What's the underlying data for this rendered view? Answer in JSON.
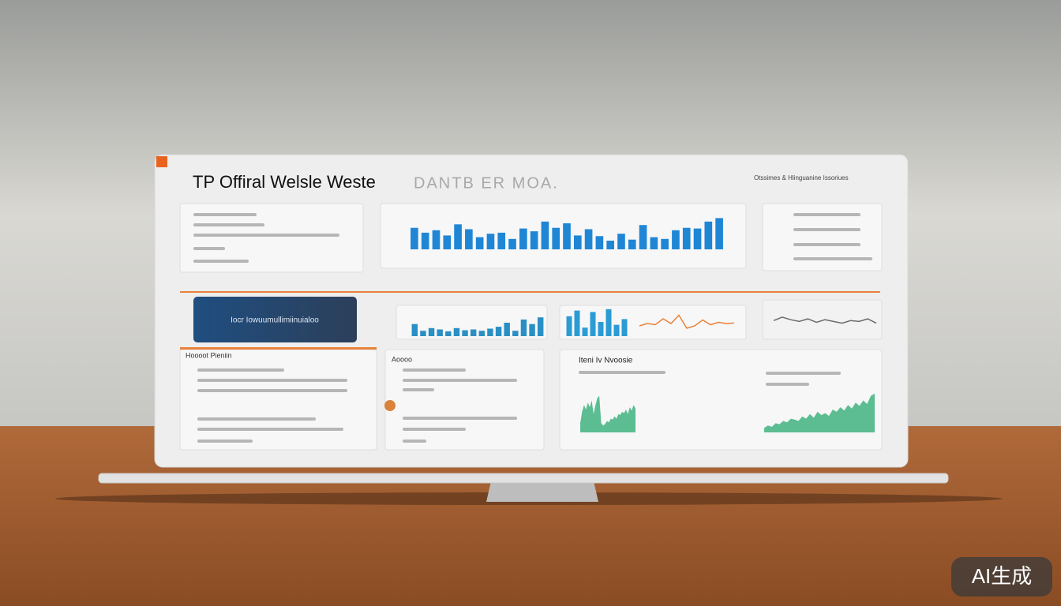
{
  "header": {
    "title": "TP Offiral Welsle Weste",
    "subtitle": "DANTB ER MOA.",
    "meta": "Otssimes & Hlinguanine Issoriues"
  },
  "button": "Iocr Iowuumullimiinuialoo",
  "panels": {
    "left": "Hoooot Pieniin",
    "middle": "Aoooo",
    "right": "Iteni Iv Nvoosie"
  },
  "watermark": "AI生成",
  "chart_data": [
    {
      "type": "bar",
      "color": "#1f86d6",
      "ylim": [
        0,
        100
      ],
      "values": [
        62,
        48,
        55,
        40,
        72,
        58,
        35,
        45,
        48,
        30,
        60,
        52,
        80,
        62,
        75,
        40,
        58,
        38,
        25,
        45,
        28,
        70,
        35,
        30,
        55,
        62,
        60,
        80,
        90
      ]
    },
    {
      "type": "bar",
      "color": "#2a8fc4",
      "ylim": [
        0,
        100
      ],
      "values": [
        45,
        20,
        30,
        25,
        18,
        30,
        22,
        25,
        20,
        28,
        35,
        50,
        20,
        62,
        45,
        70
      ]
    },
    {
      "type": "bar",
      "color": "#2b9bd4",
      "ylim": [
        0,
        100
      ],
      "values": [
        70,
        90,
        30,
        85,
        50,
        95,
        40,
        60
      ]
    },
    {
      "type": "line",
      "color": "#e8823a",
      "ylim": [
        0,
        100
      ],
      "values": [
        30,
        40,
        35,
        60,
        40,
        75,
        20,
        30,
        55,
        35,
        45,
        40,
        42
      ]
    },
    {
      "type": "line",
      "color": "#6b6b6b",
      "ylim": [
        0,
        100
      ],
      "values": [
        35,
        55,
        40,
        30,
        45,
        25,
        40,
        30,
        20,
        35,
        30,
        45,
        20
      ]
    },
    {
      "type": "area",
      "color": "#3fb37f",
      "ylim": [
        0,
        100
      ],
      "values": [
        20,
        45,
        60,
        50,
        65,
        55,
        70,
        40,
        60,
        75,
        80,
        20,
        15,
        18,
        25,
        22,
        30,
        28,
        35,
        30,
        40,
        38,
        45,
        42,
        50,
        40,
        55,
        48,
        60,
        52
      ]
    },
    {
      "type": "area",
      "color": "#3fb37f",
      "ylim": [
        0,
        100
      ],
      "values": [
        10,
        15,
        12,
        20,
        18,
        25,
        22,
        30,
        28,
        25,
        35,
        30,
        40,
        32,
        45,
        38,
        42,
        36,
        50,
        45,
        55,
        48,
        60,
        52,
        65,
        58,
        70,
        62,
        80,
        85
      ]
    }
  ]
}
